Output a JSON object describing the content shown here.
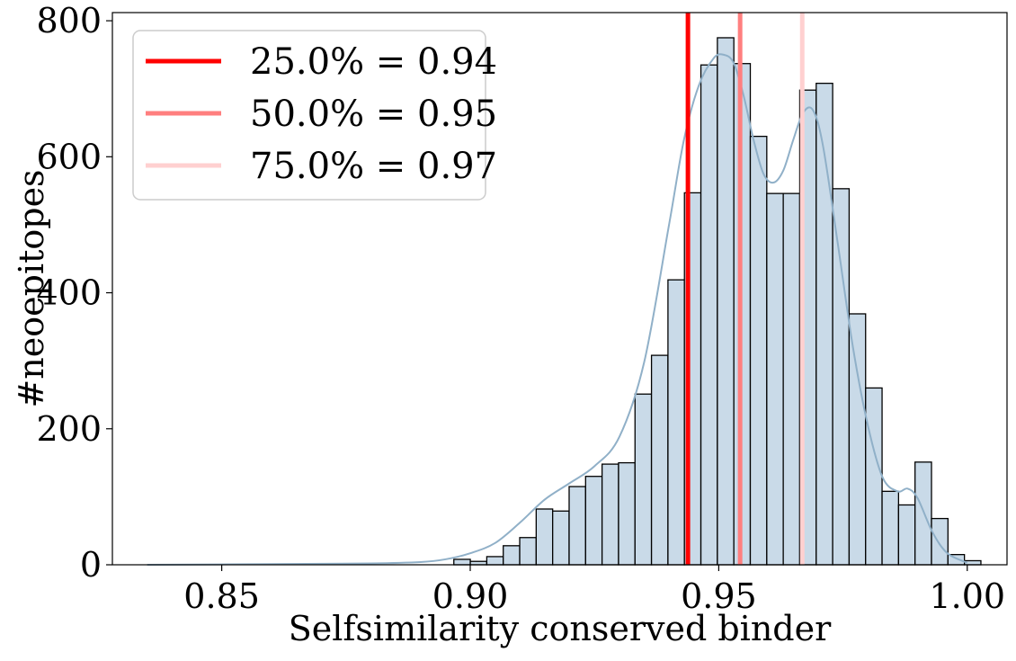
{
  "chart_data": {
    "type": "bar",
    "xlabel": "Selfsimilarity conserved binder",
    "ylabel": "#neoepitopes",
    "xlim": [
      0.828,
      1.008
    ],
    "ylim": [
      0,
      812
    ],
    "xticks": [
      0.85,
      0.9,
      0.95,
      1.0
    ],
    "xtick_labels": [
      "0.85",
      "0.90",
      "0.95",
      "1.00"
    ],
    "yticks": [
      0,
      200,
      400,
      600,
      800
    ],
    "ytick_labels": [
      "0",
      "200",
      "400",
      "600",
      "800"
    ],
    "grid": false,
    "legend_position": "top-left",
    "bar_color": "#c9dae8",
    "kde_color": "#90b0c8",
    "bins": {
      "start": 0.8967,
      "width": 0.003314,
      "values": [
        8,
        5,
        12,
        28,
        40,
        82,
        79,
        115,
        130,
        148,
        150,
        251,
        308,
        419,
        547,
        735,
        775,
        737,
        630,
        546,
        546,
        698,
        708,
        553,
        369,
        260,
        108,
        88,
        151,
        68,
        15,
        6
      ]
    },
    "kde": {
      "x": [
        0.835,
        0.86,
        0.88,
        0.89,
        0.895,
        0.9,
        0.905,
        0.91,
        0.915,
        0.92,
        0.925,
        0.93,
        0.935,
        0.94,
        0.943,
        0.946,
        0.949,
        0.951,
        0.953,
        0.955,
        0.957,
        0.959,
        0.961,
        0.963,
        0.965,
        0.967,
        0.969,
        0.971,
        0.974,
        0.977,
        0.98,
        0.983,
        0.986,
        0.988,
        0.99,
        0.993,
        0.996,
        1.0
      ],
      "y": [
        0,
        1,
        2,
        4,
        8,
        17,
        32,
        62,
        96,
        120,
        145,
        188,
        298,
        500,
        625,
        705,
        745,
        750,
        738,
        690,
        625,
        575,
        562,
        580,
        625,
        665,
        668,
        615,
        470,
        320,
        205,
        128,
        108,
        112,
        98,
        48,
        17,
        3
      ]
    },
    "vlines": [
      {
        "label": "25.0% = 0.94",
        "x": 0.9438,
        "color": "#ff0000"
      },
      {
        "label": "50.0% = 0.95",
        "x": 0.9543,
        "color": "#ff7f7f"
      },
      {
        "label": "75.0% = 0.97",
        "x": 0.9668,
        "color": "#ffd0d0"
      }
    ]
  }
}
